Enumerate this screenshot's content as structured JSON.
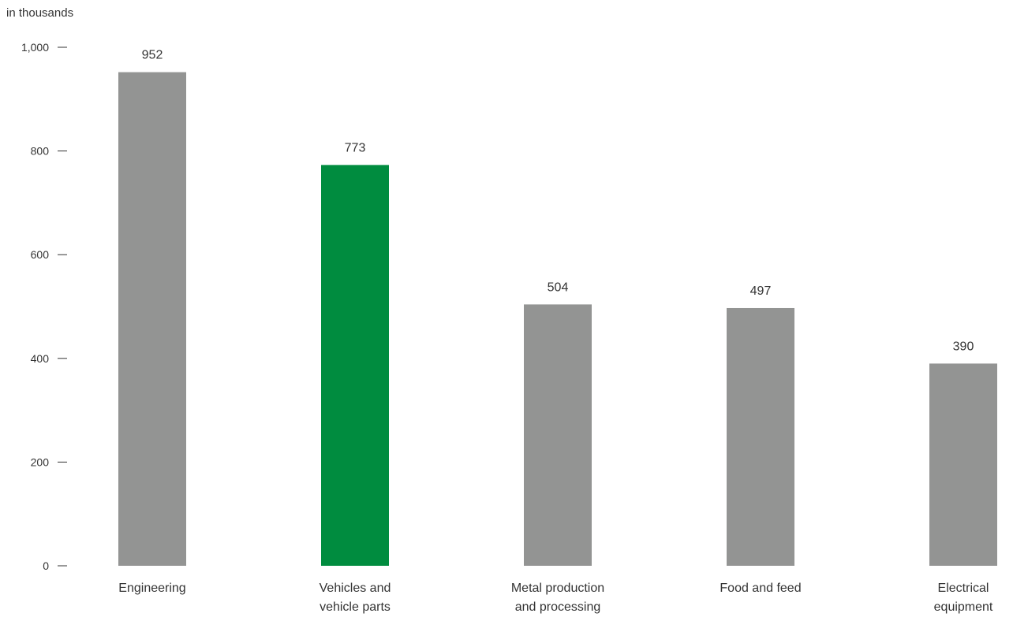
{
  "chart_data": {
    "type": "bar",
    "unit_label": "in thousands",
    "categories": [
      [
        "Engineering"
      ],
      [
        "Vehicles and",
        "vehicle parts"
      ],
      [
        "Metal production",
        "and processing"
      ],
      [
        "Food and feed"
      ],
      [
        "Electrical",
        "equipment"
      ]
    ],
    "values": [
      952,
      773,
      504,
      497,
      390
    ],
    "highlight_index": 1,
    "yticks": [
      0,
      200,
      400,
      600,
      800,
      1000
    ],
    "ytick_labels": [
      "0",
      "200",
      "400",
      "600",
      "800",
      "1,000"
    ],
    "ylim": [
      0,
      1000
    ],
    "colors": {
      "bar": "#939493",
      "highlight": "#008c3f"
    },
    "grid": false,
    "legend": "none"
  }
}
